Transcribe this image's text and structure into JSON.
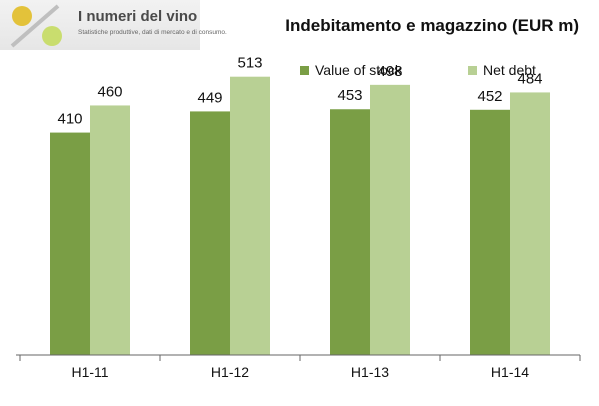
{
  "logo": {
    "title": "I numeri del vino",
    "subtitle": "Statistiche produttive, dati di mercato e di consumo."
  },
  "chart_data": {
    "type": "bar",
    "title": "Indebitamento e magazzino (EUR m)",
    "categories": [
      "H1-11",
      "H1-12",
      "H1-13",
      "H1-14"
    ],
    "series": [
      {
        "name": "Value of stock",
        "values": [
          410,
          449,
          453,
          452
        ],
        "color": "#7a9e45"
      },
      {
        "name": "Net debt",
        "values": [
          460,
          513,
          498,
          484
        ],
        "color": "#b8d094"
      }
    ],
    "ylim": [
      0,
      580
    ],
    "legend_position": "top-right",
    "grid": false
  }
}
